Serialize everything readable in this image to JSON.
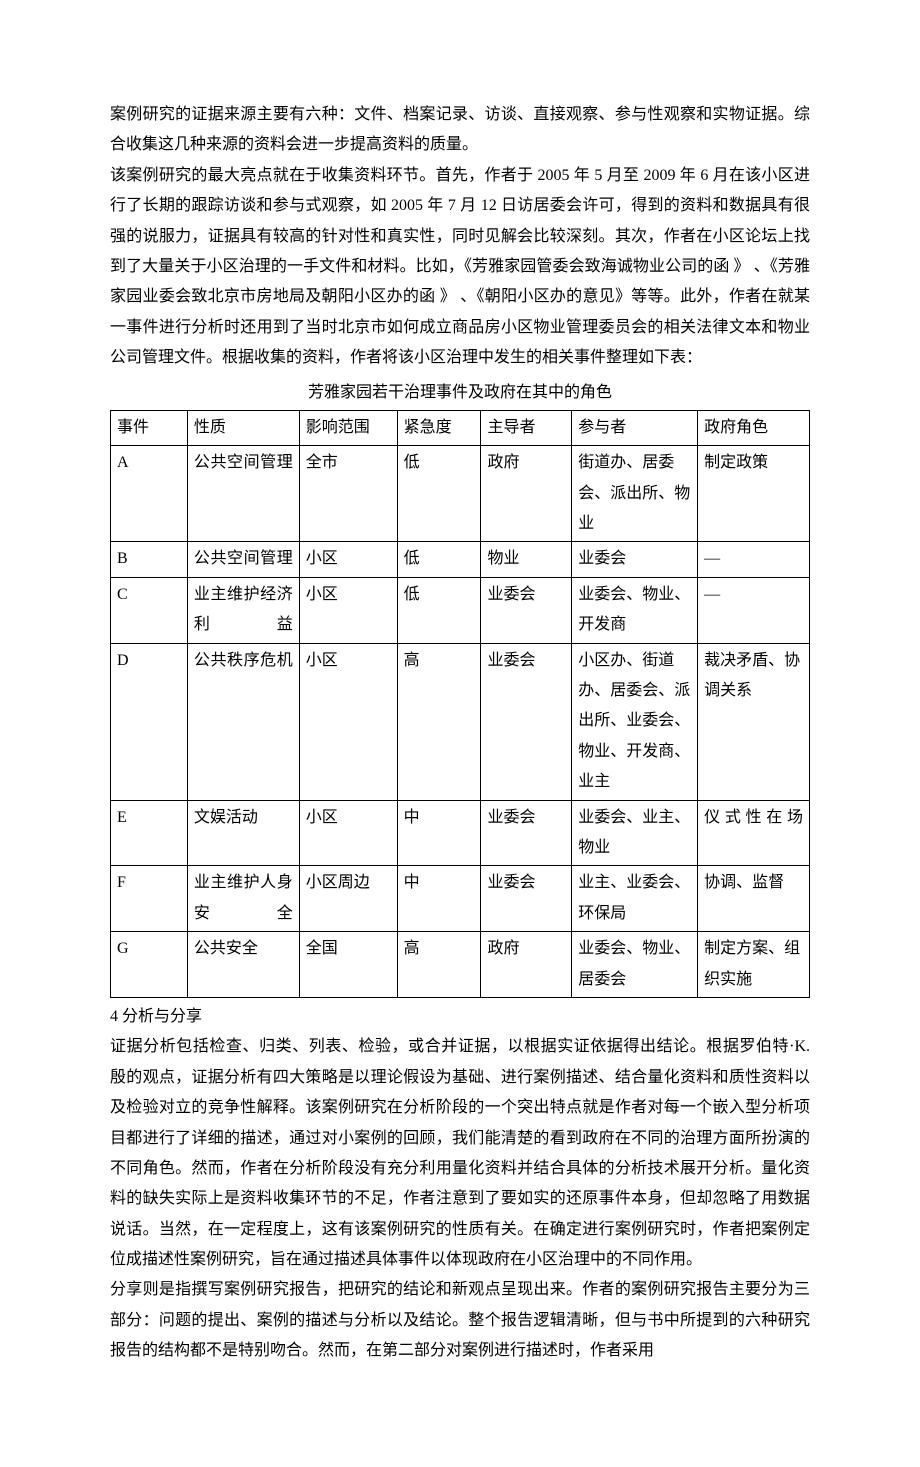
{
  "paragraphs": {
    "p1": "案例研究的证据来源主要有六种：文件、档案记录、访谈、直接观察、参与性观察和实物证据。综合收集这几种来源的资料会进一步提高资料的质量。",
    "p2": "该案例研究的最大亮点就在于收集资料环节。首先，作者于 2005 年 5 月至 2009 年 6 月在该小区进行了长期的跟踪访谈和参与式观察，如 2005 年 7 月 12 日访居委会许可，得到的资料和数据具有很强的说服力，证据具有较高的针对性和真实性，同时见解会比较深刻。其次，作者在小区论坛上找到了大量关于小区治理的一手文件和材料。比如，《芳雅家园管委会致海诚物业公司的函 》 、《芳雅家园业委会致北京市房地局及朝阳小区办的函 》 、《朝阳小区办的意见》等等。此外，作者在就某一事件进行分析时还用到了当时北京市如何成立商品房小区物业管理委员会的相关法律文本和物业公司管理文件。根据收集的资料，作者将该小区治理中发生的相关事件整理如下表：",
    "tableTitle": "芳雅家园若干治理事件及政府在其中的角色",
    "section4": "4 分析与分享",
    "p3": "证据分析包括检查、归类、列表、检验，或合并证据，以根据实证依据得出结论。根据罗伯特·K.　殷的观点，证据分析有四大策略是以理论假设为基础、进行案例描述、结合量化资料和质性资料以及检验对立的竞争性解释。该案例研究在分析阶段的一个突出特点就是作者对每一个嵌入型分析项目都进行了详细的描述，通过对小案例的回顾，我们能清楚的看到政府在不同的治理方面所扮演的不同角色。然而，作者在分析阶段没有充分利用量化资料并结合具体的分析技术展开分析。量化资料的缺失实际上是资料收集环节的不足，作者注意到了要如实的还原事件本身，但却忽略了用数据说话。当然，在一定程度上，这有该案例研究的性质有关。在确定进行案例研究时，作者把案例定位成描述性案例研究，旨在通过描述具体事件以体现政府在小区治理中的不同作用。",
    "p4": "分享则是指撰写案例研究报告，把研究的结论和新观点呈现出来。作者的案例研究报告主要分为三部分：问题的提出、案例的描述与分析以及结论。整个报告逻辑清晰，但与书中所提到的六种研究报告的结构都不是特别吻合。然而，在第二部分对案例进行描述时，作者采用"
  },
  "table": {
    "headers": {
      "event": "事件",
      "nature": "性质",
      "scope": "影响范围",
      "urgency": "紧急度",
      "leader": "主导者",
      "participant": "参与者",
      "role": "政府角色"
    },
    "rows": [
      {
        "event": "A",
        "nature": "公共空间管理",
        "natureSpaced": true,
        "scope": "全市",
        "urgency": "低",
        "leader": "政府",
        "participant": "街道办、居委会、派出所、物业",
        "role": "制定政策"
      },
      {
        "event": "B",
        "nature": "公共空间管理",
        "natureSpaced": true,
        "scope": "小区",
        "urgency": "低",
        "leader": "物业",
        "participant": "业委会",
        "role": "—"
      },
      {
        "event": "C",
        "nature": "业主维护经济利益",
        "natureSpaced": true,
        "scope": "小区",
        "urgency": "低",
        "leader": "业委会",
        "participant": "业委会、物业、开发商",
        "role": "—"
      },
      {
        "event": "D",
        "nature": "公共秩序危机",
        "natureSpaced": true,
        "scope": "小区",
        "urgency": "高",
        "leader": "业委会",
        "participant": "小区办、街道办、居委会、派出所、业委会、物业、开发商、业主",
        "role": "裁决矛盾、协调关系"
      },
      {
        "event": "E",
        "nature": "文娱活动",
        "natureSpaced": false,
        "scope": "小区",
        "urgency": "中",
        "leader": "业委会",
        "participant": "业委会、业主、物业",
        "role": "仪式性在场",
        "roleSpaced": true
      },
      {
        "event": "F",
        "nature": "业主维护人身安全",
        "natureSpaced": true,
        "scope": "小区周边",
        "urgency": "中",
        "leader": "业委会",
        "participant": "业主、业委会、环保局",
        "role": "协调、监督"
      },
      {
        "event": "G",
        "nature": "公共安全",
        "natureSpaced": false,
        "scope": "全国",
        "urgency": "高",
        "leader": "政府",
        "participant": "业委会、物业、居委会",
        "role": "制定方案、组织实施"
      }
    ]
  }
}
